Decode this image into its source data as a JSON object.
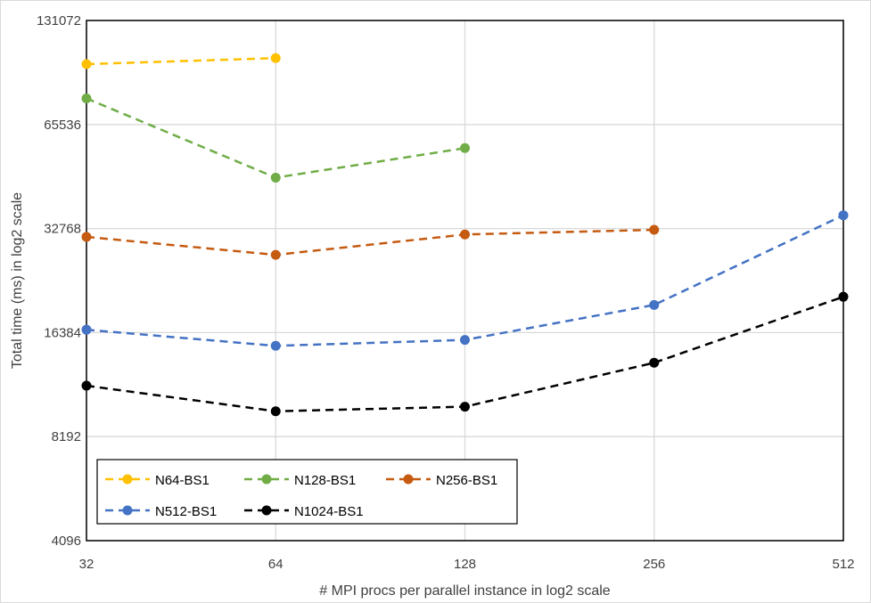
{
  "chart_data": {
    "type": "line",
    "title": "",
    "xlabel": "# MPI procs per parallel instance in log2 scale",
    "ylabel": "Total  time (ms) in log2 scale",
    "x_scale": "log2",
    "y_scale": "log2",
    "x": [
      32,
      64,
      128,
      256,
      512
    ],
    "x_tick_labels": [
      "32",
      "64",
      "128",
      "256",
      "512"
    ],
    "y_tick_labels": [
      "4096",
      "8192",
      "16384",
      "32768",
      "65536",
      "131072"
    ],
    "y_ticks": [
      4096,
      8192,
      16384,
      32768,
      65536,
      131072
    ],
    "xlim": [
      32,
      512
    ],
    "ylim": [
      4096,
      131072
    ],
    "grid": true,
    "legend_position": "bottom-left",
    "series": [
      {
        "name": "N64-BS1",
        "color": "#FFC000",
        "values": [
          98000,
          102000,
          null,
          null,
          null
        ]
      },
      {
        "name": "N128-BS1",
        "color": "#70AD47",
        "values": [
          78000,
          46000,
          56000,
          null,
          null
        ]
      },
      {
        "name": "N256-BS1",
        "color": "#C55A11",
        "values": [
          31000,
          27500,
          31500,
          32500,
          null
        ]
      },
      {
        "name": "N512-BS1",
        "color": "#4472C4",
        "values": [
          16700,
          15000,
          15600,
          19700,
          35800
        ]
      },
      {
        "name": "N1024-BS1",
        "color": "#000000",
        "values": [
          11500,
          9700,
          10000,
          13400,
          20800
        ]
      }
    ]
  }
}
